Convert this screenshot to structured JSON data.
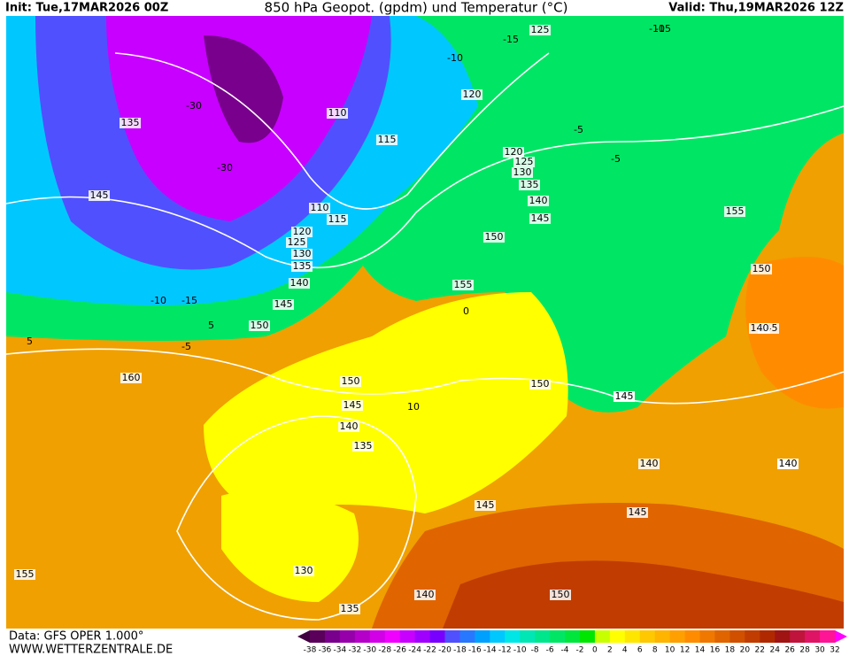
{
  "header": {
    "init": "Init: Tue,17MAR2026 00Z",
    "title": "850 hPa Geopot. (gpdm) und Temperatur (°C)",
    "valid": "Valid: Thu,19MAR2026 12Z"
  },
  "footer": {
    "data_source": "Data: GFS OPER 1.000°",
    "website": "WWW.WETTERZENTRALE.DE"
  },
  "legend": {
    "labels": [
      -38,
      -36,
      -34,
      -32,
      -30,
      -28,
      -26,
      -24,
      -22,
      -20,
      -18,
      -16,
      -14,
      -12,
      -10,
      -8,
      -6,
      -4,
      -2,
      0,
      2,
      4,
      6,
      8,
      10,
      12,
      14,
      16,
      18,
      20,
      22,
      24,
      26,
      28,
      30,
      32
    ],
    "colors": [
      "#400040",
      "#5a005a",
      "#78008c",
      "#9600aa",
      "#b400c8",
      "#d200e6",
      "#f000ff",
      "#c800ff",
      "#a000ff",
      "#7800ff",
      "#5050ff",
      "#2878ff",
      "#00a0ff",
      "#00c8ff",
      "#00e6e6",
      "#00e6b4",
      "#00e68c",
      "#00e664",
      "#00e63c",
      "#00e600",
      "#c8ff00",
      "#ffff00",
      "#ffe600",
      "#ffc800",
      "#ffb400",
      "#ffa000",
      "#ff8c00",
      "#f07800",
      "#e06400",
      "#d05000",
      "#c03c00",
      "#b02800",
      "#a01414",
      "#c0143c",
      "#e01464",
      "#ff1496",
      "#ff00ff"
    ]
  },
  "map": {
    "geopotential_labels": [
      125,
      120,
      110,
      115,
      135,
      145,
      110,
      115,
      120,
      125,
      130,
      135,
      140,
      145,
      150,
      155,
      160,
      120,
      125,
      130,
      135,
      140,
      145,
      150,
      155,
      150,
      145,
      140,
      150,
      145,
      140,
      135,
      130,
      135,
      140,
      145,
      150,
      155,
      145,
      140,
      140,
      150,
      140,
      145,
      140
    ],
    "temperature_labels": [
      -10,
      -15,
      -5,
      -30,
      -30,
      -10,
      -15,
      -5,
      -5,
      -10,
      -15,
      5,
      0,
      5,
      10
    ]
  }
}
